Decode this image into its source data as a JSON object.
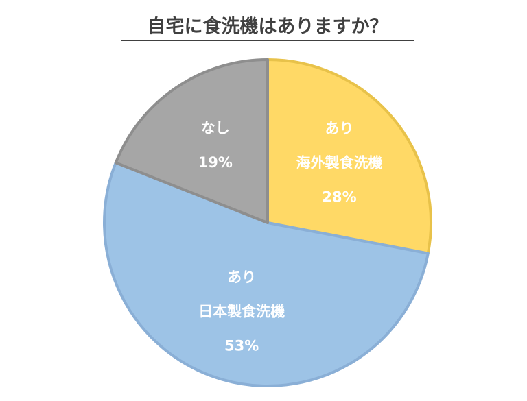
{
  "chart_data": {
    "type": "pie",
    "title": "自宅に食洗機はありますか？",
    "categories": [
      [
        "あり",
        "海外製食洗機"
      ],
      [
        "あり",
        "日本製食洗機"
      ],
      [
        "なし"
      ]
    ],
    "values": [
      28,
      53,
      19
    ],
    "value_labels": [
      "28%",
      "53%",
      "19%"
    ],
    "colors": [
      "#FFD966",
      "#9DC3E6",
      "#A6A6A6"
    ],
    "edge_colors": [
      "#E8C24A",
      "#8AAFD6",
      "#8E8E8E"
    ]
  }
}
